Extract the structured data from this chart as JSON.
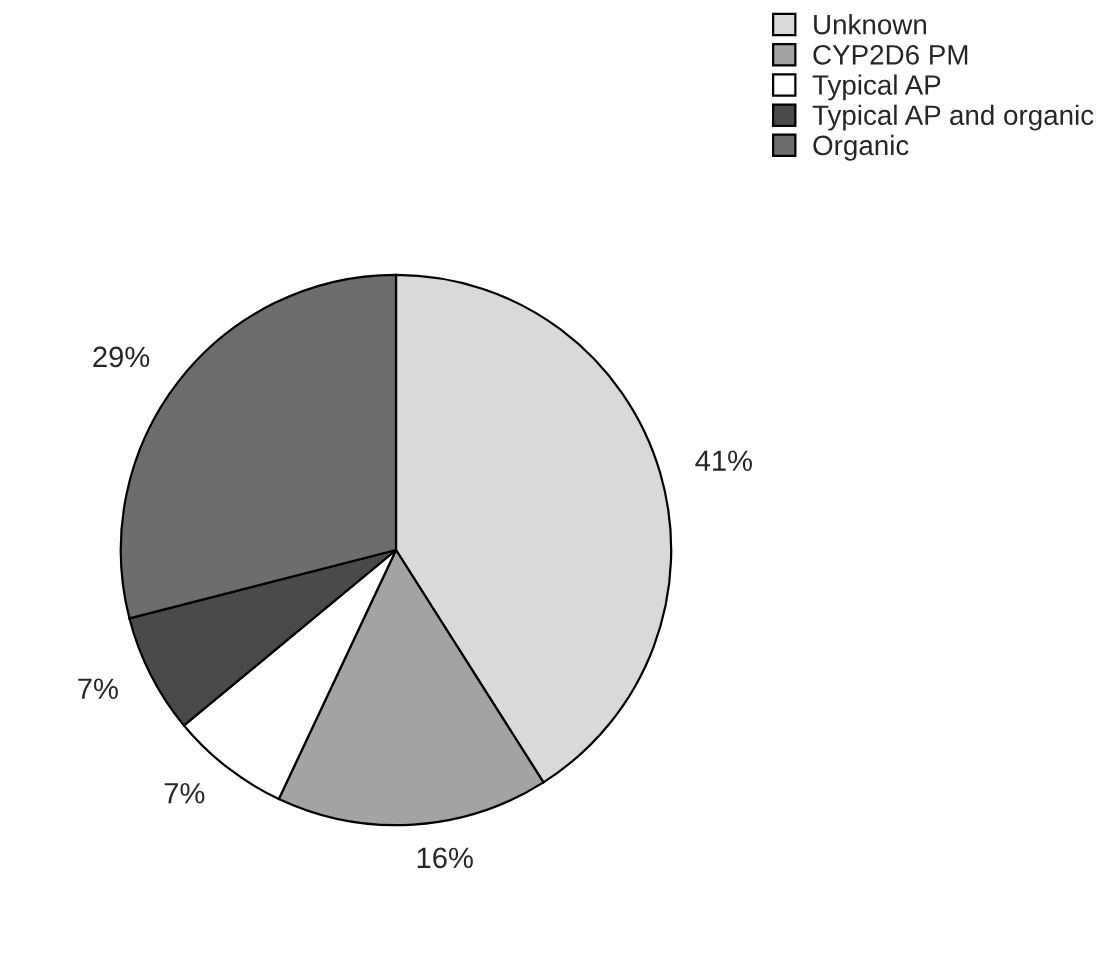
{
  "chart_data": {
    "type": "pie",
    "categories": [
      "Unknown",
      "CYP2D6 PM",
      "Typical AP",
      "Typical AP and organic",
      "Organic"
    ],
    "values": [
      41,
      16,
      7,
      7,
      29
    ],
    "colors": [
      "#d9d9d9",
      "#a3a3a3",
      "#ffffff",
      "#4a4a4a",
      "#6d6d6d"
    ],
    "value_labels": [
      "41%",
      "16%",
      "7%",
      "7%",
      "29%"
    ],
    "legend": "top right"
  }
}
